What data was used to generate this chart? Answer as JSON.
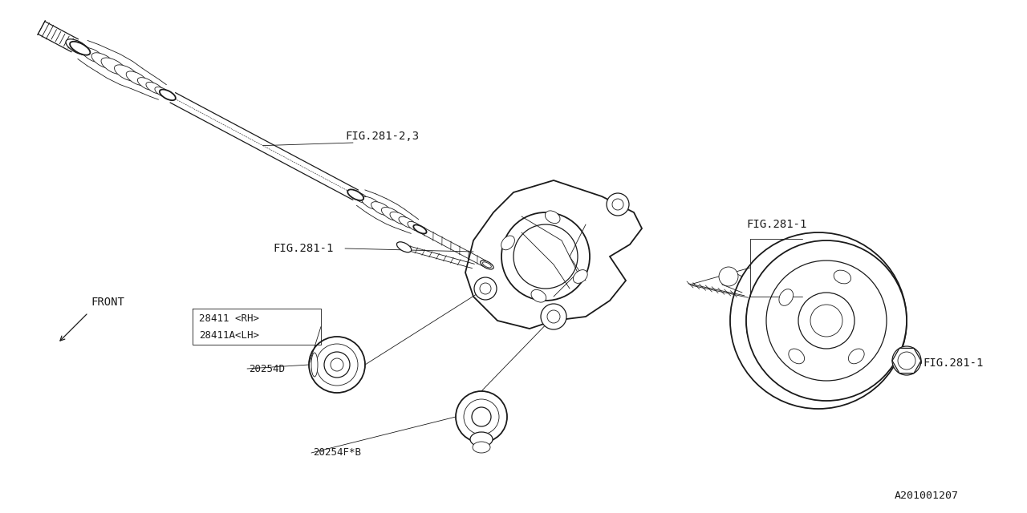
{
  "bg_color": "#ffffff",
  "line_color": "#1a1a1a",
  "fig_width": 12.8,
  "fig_height": 6.4,
  "labels": {
    "fig281_23": "FIG.281-2,3",
    "fig281_1a": "FIG.281-1",
    "fig281_1b": "FIG.281-1",
    "fig281_1c": "FIG.281-1",
    "part28411": "28411 <RH>",
    "part28411a": "28411A<LH>",
    "part20254d": "20254D",
    "part20254fb": "20254F*B",
    "ref": "A201001207"
  }
}
